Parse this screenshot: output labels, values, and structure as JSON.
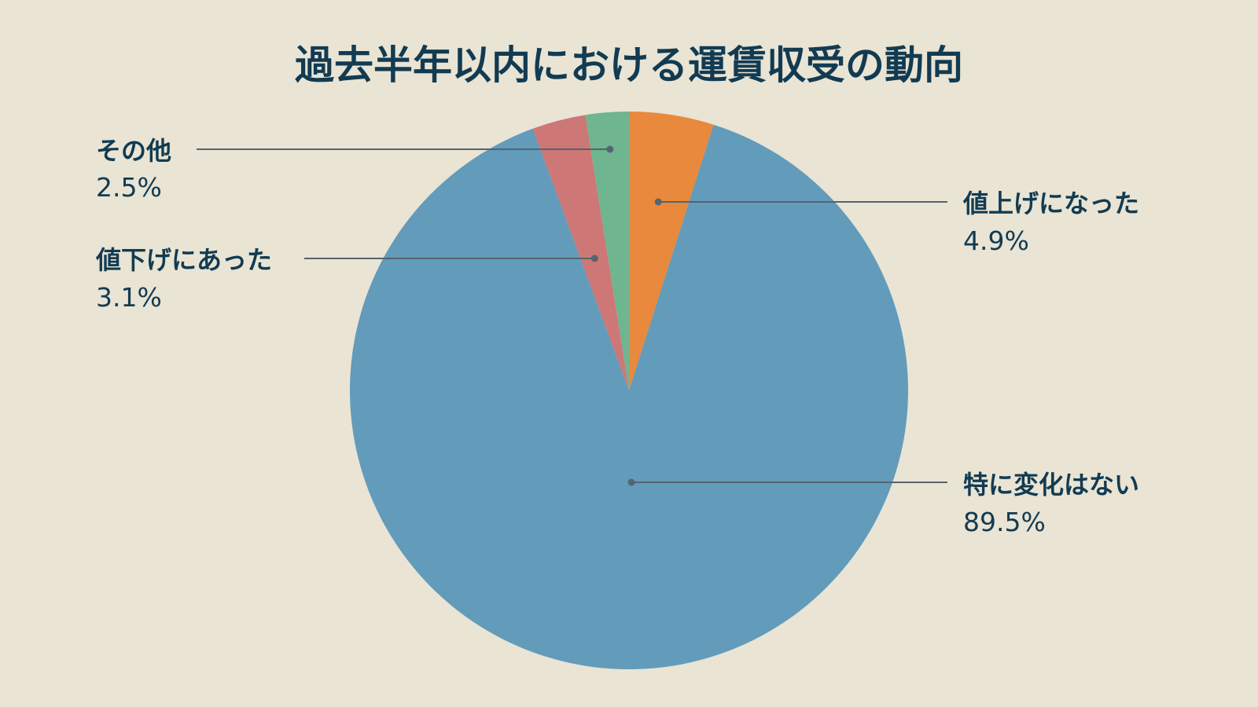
{
  "chart_data": {
    "type": "pie",
    "title": "過去半年以内における運賃収受の動向",
    "start": "12 o'clock",
    "direction": "clockwise",
    "legend": "none",
    "slices": [
      {
        "label": "値上げになった",
        "value": 4.9,
        "value_label": "4.9%",
        "color": "#e8893d"
      },
      {
        "label": "特に変化はない",
        "value": 89.5,
        "value_label": "89.5%",
        "color": "#639bbb"
      },
      {
        "label": "値下げにあった",
        "value": 3.1,
        "value_label": "3.1%",
        "color": "#cd7777"
      },
      {
        "label": "その他",
        "value": 2.5,
        "value_label": "2.5%",
        "color": "#6fb58f"
      }
    ]
  }
}
